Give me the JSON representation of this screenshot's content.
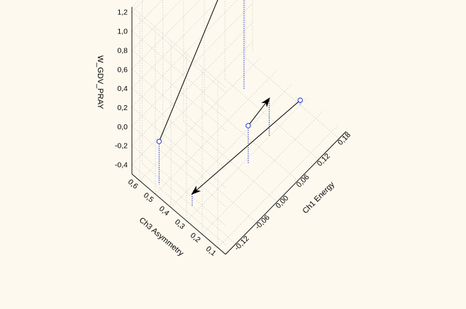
{
  "chart_data": {
    "type": "scatter",
    "subtype": "3d-vector-plot",
    "x_axis": {
      "label": "Ch1 Energy",
      "ticks": [
        "-0,12",
        "-0,06",
        "0,00",
        "0,06",
        "0,12",
        "0,18"
      ],
      "range": [
        -0.15,
        0.2
      ]
    },
    "y_axis": {
      "label": "Ch3 Asymmetry",
      "ticks": [
        "0,1",
        "0,2",
        "0,3",
        "0,4",
        "0,5",
        "0,6"
      ],
      "range": [
        0.05,
        0.65
      ]
    },
    "z_axis": {
      "label": "W_GDV_PRAY",
      "ticks": [
        "-0,4",
        "-0,2",
        "0,0",
        "0,2",
        "0,4",
        "0,6",
        "0,8",
        "1,0",
        "1,2"
      ],
      "range": [
        -0.5,
        1.25
      ]
    },
    "grid": true,
    "vectors": [
      {
        "from": {
          "x": -0.13,
          "y": 0.52,
          "z": -0.05
        },
        "to": {
          "x": 0.13,
          "y": 0.55,
          "z": 1.1
        }
      },
      {
        "from": {
          "x": 0.02,
          "y": 0.28,
          "z": -0.1
        },
        "to": {
          "x": 0.09,
          "y": 0.3,
          "z": -0.1
        }
      },
      {
        "from": {
          "x": 0.18,
          "y": 0.3,
          "z": -0.45
        },
        "to": {
          "x": -0.12,
          "y": 0.33,
          "z": -0.37
        }
      }
    ],
    "drop_lines": true,
    "colors": {
      "points": "#2233cc",
      "arrows": "#000000",
      "grid": "#c8c8c8",
      "background": "#fdf9ee"
    }
  }
}
